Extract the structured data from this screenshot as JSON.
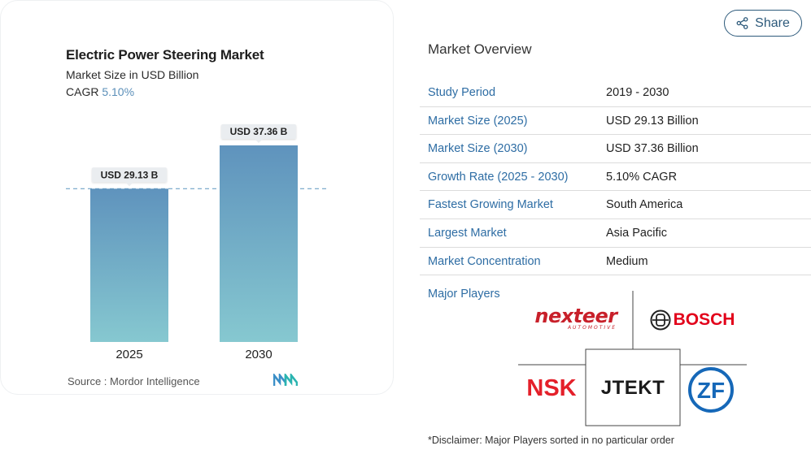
{
  "chart_card": {
    "title": "Electric Power Steering Market",
    "subtitle": "Market Size in USD Billion",
    "cagr_label": "CAGR",
    "cagr_value": "5.10%",
    "source": "Source :  Mordor Intelligence",
    "logo_text": "MN"
  },
  "chart_data": {
    "type": "bar",
    "categories": [
      "2025",
      "2030"
    ],
    "values": [
      29.13,
      37.36
    ],
    "data_labels": [
      "USD 29.13 B",
      "USD 37.36 B"
    ],
    "title": "Electric Power Steering Market",
    "subtitle": "Market Size in USD Billion",
    "xlabel": "",
    "ylabel": "",
    "ylim": [
      0,
      37.36
    ],
    "reference_line": 29.13,
    "colors": {
      "bar_top": "#5f93bd",
      "bar_bottom": "#86c8d0",
      "dashed_line": "#6fa3c8",
      "label_bg": "#eaedf0"
    },
    "grid": false,
    "legend": "none"
  },
  "share": {
    "label": "Share",
    "icon": "share-icon"
  },
  "overview": {
    "title": "Market Overview",
    "rows": [
      {
        "label": "Study Period",
        "value": "2019 - 2030"
      },
      {
        "label": "Market Size (2025)",
        "value": "USD 29.13 Billion"
      },
      {
        "label": "Market Size (2030)",
        "value": "USD 37.36 Billion"
      },
      {
        "label": "Growth Rate (2025 - 2030)",
        "value": "5.10% CAGR"
      },
      {
        "label": "Fastest Growing Market",
        "value": "South America"
      },
      {
        "label": "Largest Market",
        "value": "Asia Pacific"
      },
      {
        "label": "Market Concentration",
        "value": "Medium"
      }
    ]
  },
  "major_players": {
    "label": "Major Players",
    "logos": {
      "nexteer": "nexteer",
      "nexteer_sub": "AUTOMOTIVE",
      "bosch": "BOSCH",
      "nsk": "NSK",
      "jtekt": "JTEKT",
      "zf": "ZF"
    }
  },
  "disclaimer": "*Disclaimer: Major Players sorted in no particular order"
}
